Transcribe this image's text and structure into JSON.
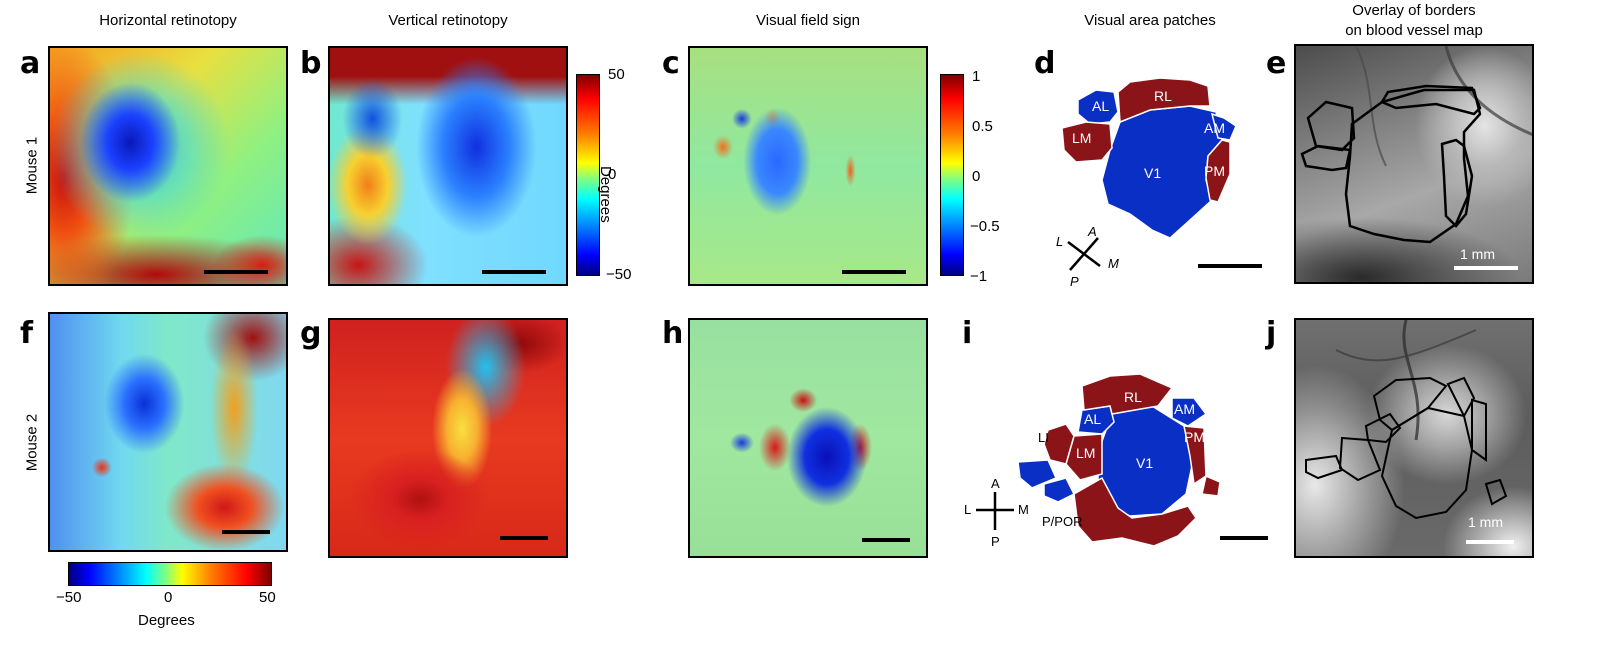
{
  "columns": {
    "horizontal": "Horizontal retinotopy",
    "vertical": "Vertical retinotopy",
    "sign": "Visual field sign",
    "patches": "Visual area patches",
    "overlay_line1": "Overlay of borders",
    "overlay_line2": "on blood vessel map"
  },
  "rows": {
    "mouse1": "Mouse 1",
    "mouse2": "Mouse 2"
  },
  "letters": {
    "a": "a",
    "b": "b",
    "c": "c",
    "d": "d",
    "e": "e",
    "f": "f",
    "g": "g",
    "h": "h",
    "i": "i",
    "j": "j"
  },
  "colorbar_degrees": {
    "max": "50",
    "mid": "0",
    "min": "−50",
    "title": "Degrees"
  },
  "colorbar_sign": {
    "t1": "1",
    "t2": "0.5",
    "t3": "0",
    "t4": "−0.5",
    "t5": "−1"
  },
  "colorbar_bottom": {
    "min": "−50",
    "mid": "0",
    "max": "50",
    "title": "Degrees"
  },
  "areas1": {
    "al": "AL",
    "rl": "RL",
    "lm": "LM",
    "am": "AM",
    "v1": "V1",
    "pm": "PM"
  },
  "areas2": {
    "al": "AL",
    "rl": "RL",
    "lm": "LM",
    "am": "AM",
    "v1": "V1",
    "pm": "PM",
    "li": "LI",
    "ppor": "P/POR"
  },
  "compass1": {
    "a": "A",
    "l": "L",
    "m": "M",
    "p": "P"
  },
  "compass2": {
    "a": "A",
    "l": "L",
    "m": "M",
    "p": "P"
  },
  "scale": {
    "mm1": "1 mm",
    "mm2": "1 mm"
  },
  "colors": {
    "v1_blue": "#0a2fc4",
    "patch_red": "#8b1419"
  }
}
